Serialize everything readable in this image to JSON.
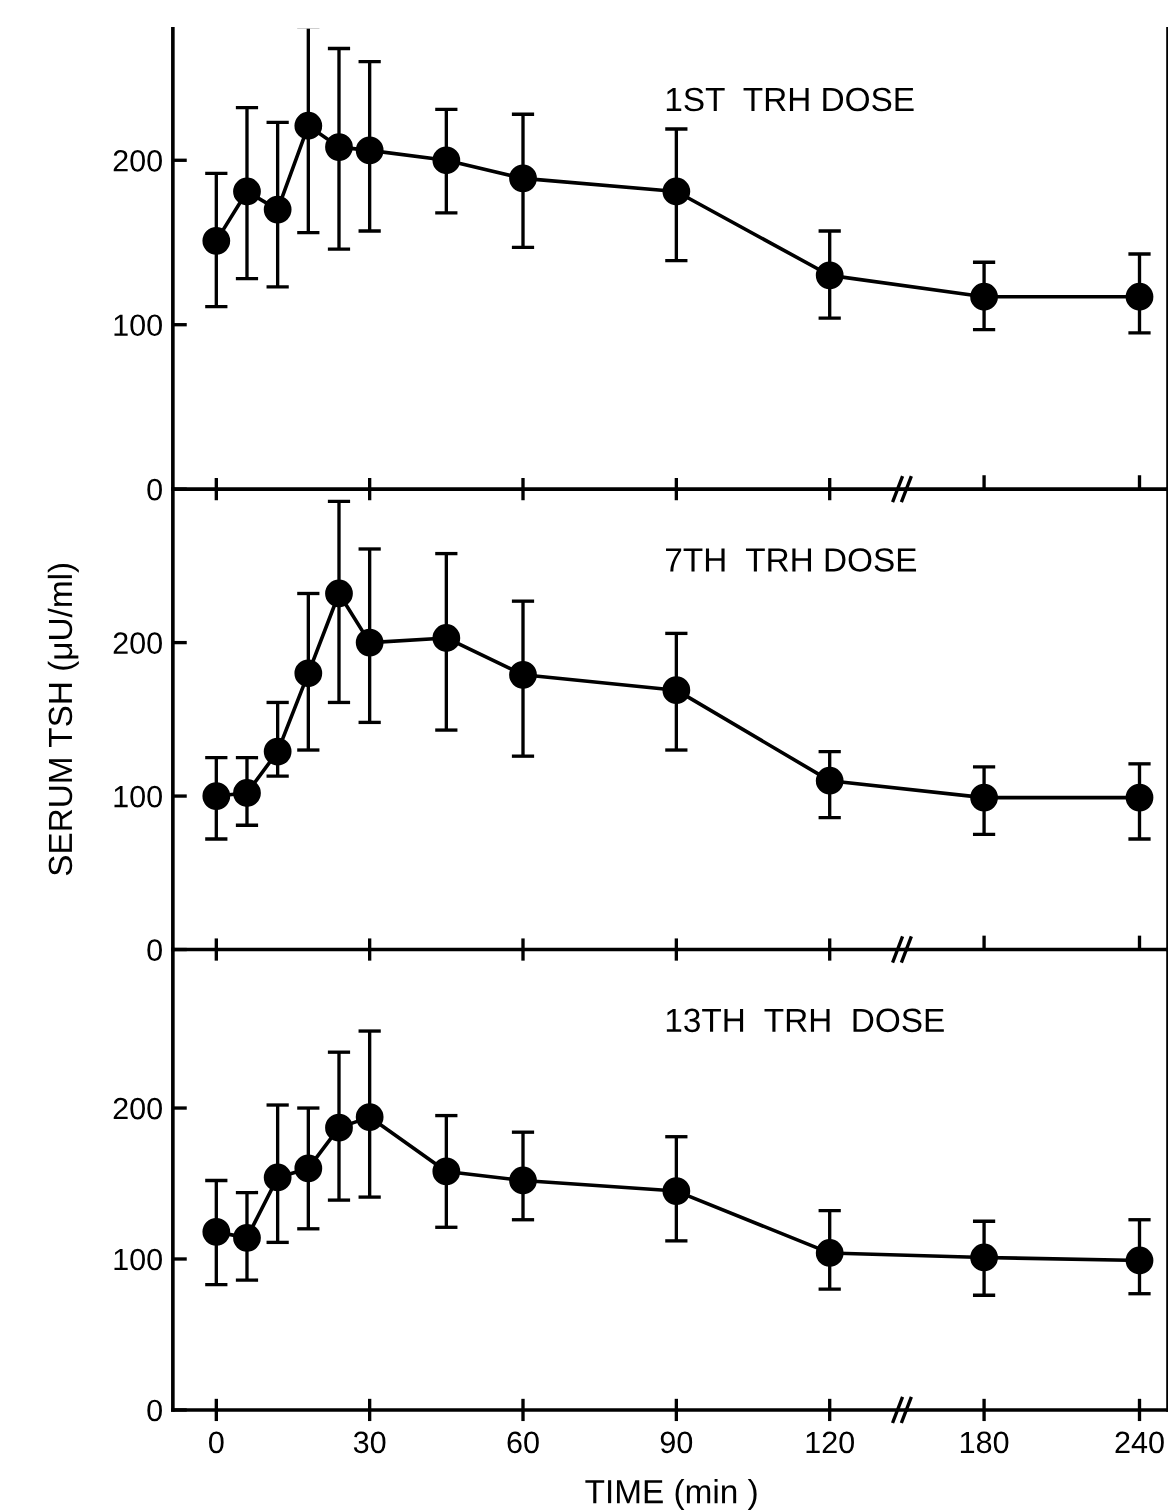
{
  "chart_data": [
    {
      "type": "line",
      "annotations": [
        "1ST  TRH DOSE"
      ],
      "x": [
        0,
        6,
        12,
        18,
        24,
        30,
        45,
        60,
        90,
        120
      ],
      "series": [
        {
          "color": "#000000",
          "values": [
            151,
            181,
            170,
            221,
            208,
            206,
            200,
            189,
            181,
            130
          ],
          "errors": [
            [
              111,
              192
            ],
            [
              128,
              232
            ],
            [
              123,
              223
            ],
            [
              156,
              281
            ],
            [
              146,
              268
            ],
            [
              157,
              260
            ],
            [
              168,
              231
            ],
            [
              147,
              228
            ],
            [
              139,
              219
            ],
            [
              104,
              157
            ]
          ]
        }
      ],
      "xlim": [
        -8.5,
        135
      ],
      "xticks": [
        0,
        30,
        60,
        90,
        120
      ],
      "ylim": [
        0,
        280
      ],
      "yticks": [
        0,
        100,
        200
      ],
      "tick_labels": "y",
      "marker": "circle",
      "line_style": "solid",
      "grid": false,
      "legend": false
    },
    {
      "type": "line",
      "x": [
        180,
        240
      ],
      "series": [
        {
          "color": "#000000",
          "values": [
            117,
            117
          ],
          "errors": [
            [
              97,
              138
            ],
            [
              95,
              143
            ]
          ]
        }
      ],
      "xlim": [
        150,
        251
      ],
      "xticks": [
        180,
        240
      ],
      "ylim": [
        0,
        280
      ],
      "tick_labels": false,
      "marker": "circle",
      "line_style": "solid",
      "grid": false,
      "legend": false
    },
    {
      "type": "line",
      "ylabel": "SERUM TSH (μU/ml)",
      "annotations": [
        "7TH  TRH DOSE"
      ],
      "x": [
        0,
        6,
        12,
        18,
        24,
        30,
        45,
        60,
        90,
        120
      ],
      "series": [
        {
          "color": "#000000",
          "values": [
            100,
            102,
            129,
            180,
            232,
            200,
            203,
            179,
            169,
            110
          ],
          "errors": [
            [
              72,
              125
            ],
            [
              81,
              125
            ],
            [
              113,
              161
            ],
            [
              130,
              232
            ],
            [
              161,
              292
            ],
            [
              148,
              261
            ],
            [
              143,
              258
            ],
            [
              126,
              227
            ],
            [
              130,
              206
            ],
            [
              86,
              129
            ]
          ]
        }
      ],
      "xlim": [
        -8.5,
        135
      ],
      "xticks": [
        0,
        30,
        60,
        90,
        120
      ],
      "ylim": [
        0,
        300
      ],
      "yticks": [
        0,
        100,
        200
      ],
      "tick_labels": "y",
      "marker": "circle",
      "line_style": "solid",
      "grid": false,
      "legend": false
    },
    {
      "type": "line",
      "x": [
        180,
        240
      ],
      "series": [
        {
          "color": "#000000",
          "values": [
            99,
            99
          ],
          "errors": [
            [
              75,
              119
            ],
            [
              72,
              121
            ]
          ]
        }
      ],
      "xlim": [
        150,
        251
      ],
      "xticks": [
        180,
        240
      ],
      "ylim": [
        0,
        300
      ],
      "tick_labels": false,
      "marker": "circle",
      "line_style": "solid",
      "grid": false,
      "legend": false
    },
    {
      "type": "line",
      "xlabel": "TIME (min )",
      "annotations": [
        "13TH  TRH  DOSE"
      ],
      "x": [
        0,
        6,
        12,
        18,
        24,
        30,
        45,
        60,
        90,
        120
      ],
      "series": [
        {
          "color": "#000000",
          "values": [
            118,
            114,
            154,
            160,
            187,
            194,
            158,
            152,
            145,
            104
          ],
          "errors": [
            [
              83,
              152
            ],
            [
              86,
              144
            ],
            [
              111,
              202
            ],
            [
              120,
              200
            ],
            [
              139,
              237
            ],
            [
              141,
              251
            ],
            [
              121,
              195
            ],
            [
              126,
              184
            ],
            [
              112,
              181
            ],
            [
              80,
              132
            ]
          ]
        }
      ],
      "xlim": [
        -8.5,
        135
      ],
      "xticks": [
        0,
        30,
        60,
        90,
        120
      ],
      "ylim": [
        0,
        305
      ],
      "yticks": [
        0,
        100,
        200
      ],
      "marker": "circle",
      "line_style": "solid",
      "grid": false,
      "legend": false
    },
    {
      "type": "line",
      "x": [
        180,
        240
      ],
      "series": [
        {
          "color": "#000000",
          "values": [
            101,
            99
          ],
          "errors": [
            [
              76,
              125
            ],
            [
              77,
              126
            ]
          ]
        }
      ],
      "xlim": [
        150,
        251
      ],
      "xticks": [
        180,
        240
      ],
      "ylim": [
        0,
        305
      ],
      "tick_labels": "x",
      "marker": "circle",
      "line_style": "solid",
      "grid": false,
      "legend": false
    }
  ]
}
